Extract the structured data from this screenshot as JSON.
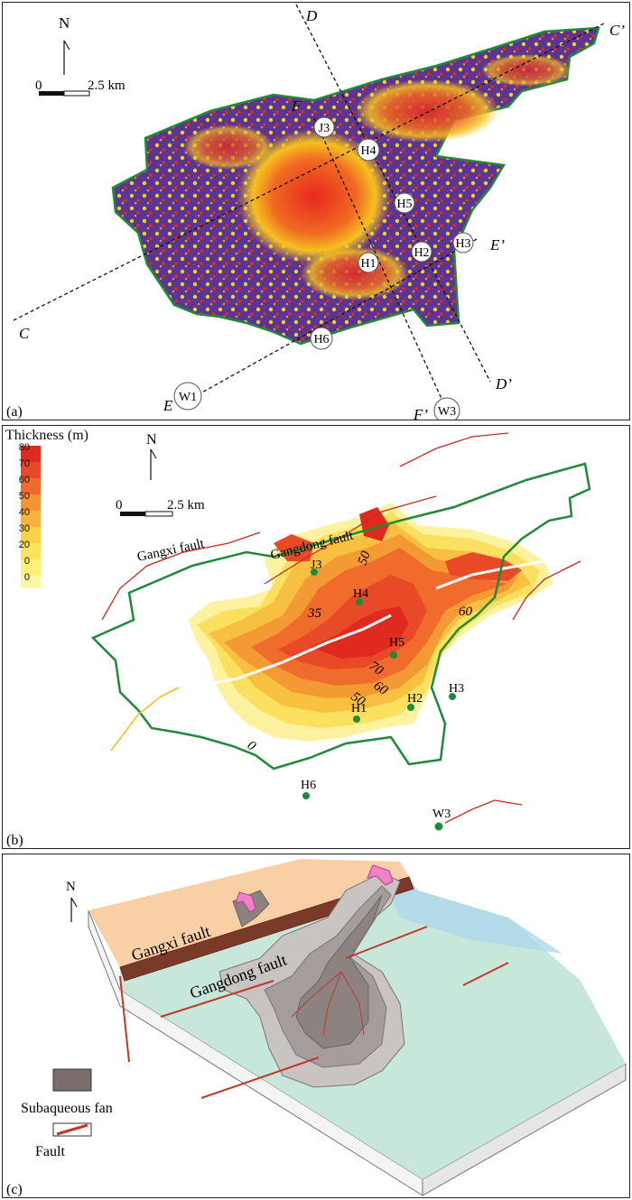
{
  "panel_a": {
    "label": "(a)",
    "north": "N",
    "scale_zero": "0",
    "scale_text": "2.5 km",
    "section_letters": [
      "C",
      "C’",
      "D",
      "D’",
      "E",
      "E’",
      "F",
      "F’"
    ],
    "wells": [
      "J3",
      "H4",
      "H5",
      "H2",
      "H3",
      "H1",
      "H6",
      "W1",
      "W3"
    ],
    "colors": {
      "low": "#4b2c8a",
      "mid": "#f5d020",
      "high": "#e8281e",
      "outline": "#1f8a3a"
    }
  },
  "panel_b": {
    "label": "(b)",
    "legend_title": "Thickness (m)",
    "legend_ticks": [
      "80",
      "70",
      "60",
      "50",
      "40",
      "30",
      "20",
      "0",
      "0"
    ],
    "legend_colors": [
      "#e02a20",
      "#e8482a",
      "#ef6a2e",
      "#f49434",
      "#f7b43a",
      "#fad046",
      "#fbe45c",
      "#fdf07a",
      "#fef7a8"
    ],
    "north": "N",
    "scale_zero": "0",
    "scale_text": "2.5 km",
    "fault_labels": [
      "Gangxi fault",
      "Gangdong fault"
    ],
    "contour_labels": [
      "35",
      "50",
      "60",
      "70",
      "60",
      "50",
      "0"
    ],
    "wells": [
      "J3",
      "H4",
      "H5",
      "H2",
      "H3",
      "H1",
      "H6",
      "W3"
    ],
    "well_color": "#1a8c3a"
  },
  "panel_c": {
    "label": "(c)",
    "north": "N",
    "fault_labels": [
      "Gangxi fault",
      "Gangdong fault"
    ],
    "legend": [
      {
        "label": "Subaqueous fan",
        "color": "#7a6e6c"
      },
      {
        "label": "Fault",
        "color": "#c0392b"
      }
    ],
    "colors": {
      "upthrown": "#f9cfa6",
      "basin": "#bfe3d6",
      "fan": "#8c8280",
      "arrow": "#f080c8"
    }
  }
}
